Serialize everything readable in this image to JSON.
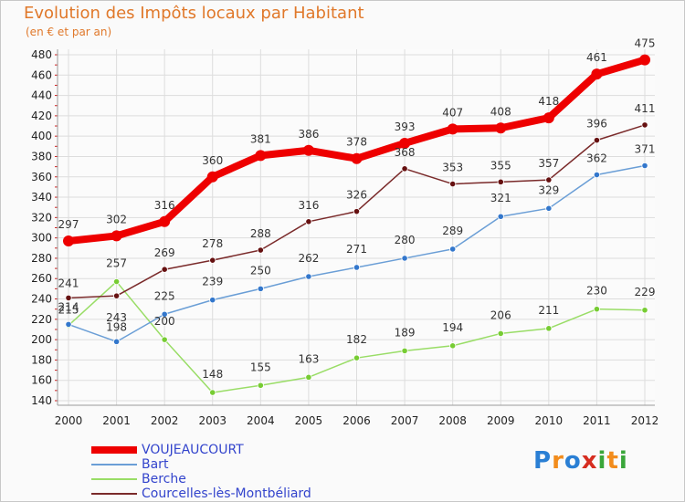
{
  "title": "Evolution des Impôts locaux par Habitant",
  "subtitle": "(en € et par an)",
  "logo": {
    "text": "Proxiti",
    "colors": [
      "#2a7fd4",
      "#f28c1c",
      "#2a7fd4",
      "#d62d20",
      "#3aa63a",
      "#f28c1c",
      "#3aa63a"
    ]
  },
  "chart_data": {
    "type": "line",
    "x": [
      2000,
      2001,
      2002,
      2003,
      2004,
      2005,
      2006,
      2007,
      2008,
      2009,
      2010,
      2011,
      2012
    ],
    "ylim": [
      140,
      480
    ],
    "yticks": [
      140,
      160,
      180,
      200,
      220,
      240,
      260,
      280,
      300,
      320,
      340,
      360,
      380,
      400,
      420,
      440,
      460,
      480
    ],
    "grid": true,
    "legend_position": "bottom-left",
    "series": [
      {
        "name": "VOUJEAUCOURT",
        "color": "#ee0000",
        "marker": "#ee0000",
        "width": 8,
        "values": [
          297,
          302,
          316,
          360,
          381,
          386,
          378,
          393,
          407,
          408,
          418,
          461,
          475
        ]
      },
      {
        "name": "Bart",
        "color": "#6a9ed6",
        "marker": "#3377cc",
        "width": 1.5,
        "values": [
          215,
          198,
          225,
          239,
          250,
          262,
          271,
          280,
          289,
          321,
          329,
          362,
          371
        ]
      },
      {
        "name": "Berche",
        "color": "#99dd66",
        "marker": "#77cc33",
        "width": 1.5,
        "values": [
          214,
          257,
          200,
          148,
          155,
          163,
          182,
          189,
          194,
          206,
          211,
          230,
          229
        ]
      },
      {
        "name": "Courcelles-lès-Montbéliard",
        "color": "#7a2a2a",
        "marker": "#661111",
        "width": 1.5,
        "values": [
          241,
          243,
          269,
          278,
          288,
          316,
          326,
          368,
          353,
          355,
          357,
          396,
          411
        ]
      }
    ]
  }
}
